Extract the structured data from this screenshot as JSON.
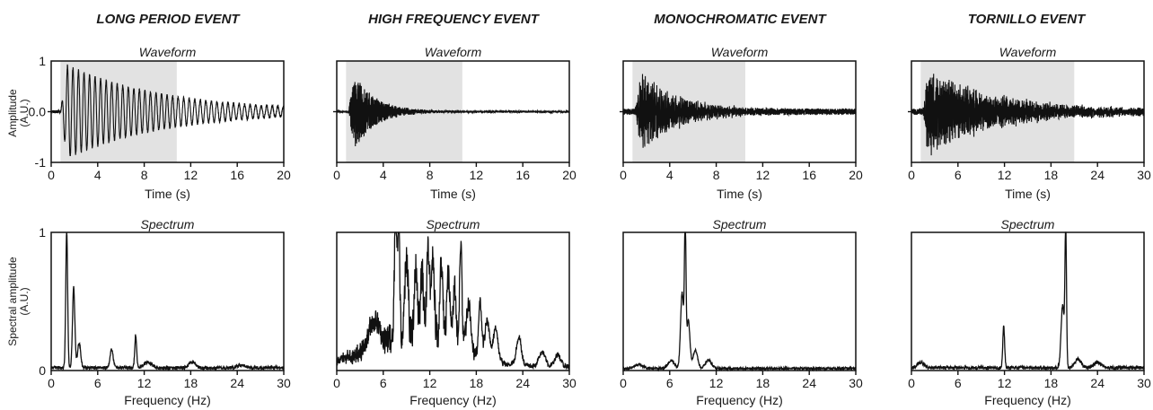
{
  "figure": {
    "ylabel_top": [
      "Amplitude",
      "(A.U.)"
    ],
    "ylabel_bottom": [
      "Spectral amplitude",
      "(A.U.)"
    ]
  },
  "colors": {
    "window": "#e2e2e2",
    "line": "#111111"
  },
  "events": [
    {
      "title": "LONG PERIOD EVENT",
      "waveform": {
        "title": "Waveform",
        "xlabel": "Time (s)",
        "xlim": [
          0,
          20
        ],
        "xticks": [
          "0",
          "4",
          "8",
          "12",
          "16",
          "20"
        ],
        "xtick_values": [
          0,
          4,
          8,
          12,
          16,
          20
        ],
        "yticks": [
          "1",
          "0.0",
          "-1"
        ],
        "ylim": [
          -1,
          1
        ],
        "window": [
          0.8,
          10.8
        ],
        "onset": 0.8,
        "style": "harmonic",
        "freq": 2.1,
        "decay": 0.12,
        "noise": 0.03
      },
      "spectrum": {
        "title": "Spectrum",
        "xlabel": "Frequency (Hz)",
        "xlim": [
          0,
          30
        ],
        "xticks": [
          "0",
          "6",
          "12",
          "18",
          "24",
          "30"
        ],
        "xtick_values": [
          0,
          6,
          12,
          18,
          24,
          30
        ],
        "yticks": [
          "1",
          "0"
        ],
        "ylim": [
          0,
          1
        ],
        "baseline": 0.02,
        "peaks": [
          [
            2.0,
            1.0,
            0.12
          ],
          [
            2.9,
            0.58,
            0.15
          ],
          [
            3.6,
            0.18,
            0.2
          ],
          [
            7.8,
            0.13,
            0.2
          ],
          [
            10.9,
            0.24,
            0.12
          ],
          [
            12.5,
            0.04,
            0.5
          ],
          [
            18.2,
            0.04,
            0.4
          ],
          [
            24.5,
            0.02,
            0.5
          ]
        ]
      }
    },
    {
      "title": "HIGH FREQUENCY EVENT",
      "waveform": {
        "title": "Waveform",
        "xlabel": "Time (s)",
        "xlim": [
          0,
          20
        ],
        "xticks": [
          "0",
          "4",
          "8",
          "12",
          "16",
          "20"
        ],
        "xtick_values": [
          0,
          4,
          8,
          12,
          16,
          20
        ],
        "yticks": [
          "1",
          "0.0",
          "-1"
        ],
        "ylim": [
          -1,
          1
        ],
        "window": [
          0.8,
          10.8
        ],
        "onset": 1.0,
        "style": "broadband",
        "decay": 0.55,
        "noise": 0.02
      },
      "spectrum": {
        "title": "Spectrum",
        "xlabel": "Frequency (Hz)",
        "xlim": [
          0,
          30
        ],
        "xticks": [
          "0",
          "6",
          "12",
          "18",
          "24",
          "30"
        ],
        "xtick_values": [
          0,
          6,
          12,
          18,
          24,
          30
        ],
        "yticks": [
          "1",
          "0"
        ],
        "ylim": [
          0,
          1
        ],
        "baseline": 0.03,
        "peaks": [
          [
            4.8,
            0.2,
            0.6
          ],
          [
            7.6,
            0.98,
            0.15
          ],
          [
            8.0,
            1.0,
            0.12
          ],
          [
            9.0,
            0.6,
            0.2
          ],
          [
            10.2,
            0.5,
            0.2
          ],
          [
            11.0,
            0.45,
            0.2
          ],
          [
            11.8,
            0.62,
            0.2
          ],
          [
            12.4,
            0.57,
            0.2
          ],
          [
            13.5,
            0.55,
            0.2
          ],
          [
            14.4,
            0.5,
            0.2
          ],
          [
            15.2,
            0.45,
            0.2
          ],
          [
            16.0,
            0.77,
            0.15
          ],
          [
            17.0,
            0.35,
            0.3
          ],
          [
            18.5,
            0.4,
            0.2
          ],
          [
            19.4,
            0.28,
            0.3
          ],
          [
            20.5,
            0.25,
            0.3
          ],
          [
            23.5,
            0.2,
            0.3
          ],
          [
            26.5,
            0.1,
            0.4
          ],
          [
            28.5,
            0.08,
            0.4
          ]
        ],
        "envelope": [
          10,
          0.3,
          5.5
        ]
      }
    },
    {
      "title": "MONOCHROMATIC EVENT",
      "waveform": {
        "title": "Waveform",
        "xlabel": "Time (s)",
        "xlim": [
          0,
          20
        ],
        "xticks": [
          "0",
          "4",
          "8",
          "12",
          "16",
          "20"
        ],
        "xtick_values": [
          0,
          4,
          8,
          12,
          16,
          20
        ],
        "yticks": [
          "1",
          "0.0",
          "-1"
        ],
        "ylim": [
          -1,
          1
        ],
        "window": [
          0.8,
          10.5
        ],
        "onset": 1.0,
        "style": "dense",
        "freq": 8.0,
        "decay": 0.3,
        "noise": 0.06
      },
      "spectrum": {
        "title": "Spectrum",
        "xlabel": "Frequency (Hz)",
        "xlim": [
          0,
          30
        ],
        "xticks": [
          "0",
          "6",
          "12",
          "18",
          "24",
          "30"
        ],
        "xtick_values": [
          0,
          6,
          12,
          18,
          24,
          30
        ],
        "yticks": [
          "1",
          "0"
        ],
        "ylim": [
          0,
          1
        ],
        "baseline": 0.015,
        "peaks": [
          [
            8.0,
            1.0,
            0.1
          ],
          [
            7.6,
            0.55,
            0.2
          ],
          [
            8.4,
            0.35,
            0.2
          ],
          [
            6.2,
            0.06,
            0.4
          ],
          [
            9.3,
            0.13,
            0.3
          ],
          [
            11.0,
            0.06,
            0.4
          ],
          [
            2.0,
            0.03,
            0.5
          ]
        ]
      }
    },
    {
      "title": "TORNILLO EVENT",
      "waveform": {
        "title": "Waveform",
        "xlabel": "Time (s)",
        "xlim": [
          0,
          30
        ],
        "xticks": [
          "0",
          "6",
          "12",
          "18",
          "24",
          "30"
        ],
        "xtick_values": [
          0,
          6,
          12,
          18,
          24,
          30
        ],
        "yticks": [
          "1",
          "0.0",
          "-1"
        ],
        "ylim": [
          -1,
          1
        ],
        "window": [
          1.2,
          21.0
        ],
        "onset": 1.5,
        "style": "dense",
        "freq": 12.0,
        "decay": 0.11,
        "noise": 0.06
      },
      "spectrum": {
        "title": "Spectrum",
        "xlabel": "Frequency (Hz)",
        "xlim": [
          0,
          30
        ],
        "xticks": [
          "0",
          "6",
          "12",
          "18",
          "24",
          "30"
        ],
        "xtick_values": [
          0,
          6,
          12,
          18,
          24,
          30
        ],
        "yticks": [
          "1",
          "0"
        ],
        "ylim": [
          0,
          1
        ],
        "baseline": 0.02,
        "peaks": [
          [
            11.9,
            0.3,
            0.12
          ],
          [
            19.9,
            1.0,
            0.1
          ],
          [
            19.5,
            0.45,
            0.2
          ],
          [
            21.5,
            0.06,
            0.4
          ],
          [
            24.0,
            0.04,
            0.5
          ],
          [
            1.2,
            0.04,
            0.4
          ]
        ]
      }
    }
  ]
}
